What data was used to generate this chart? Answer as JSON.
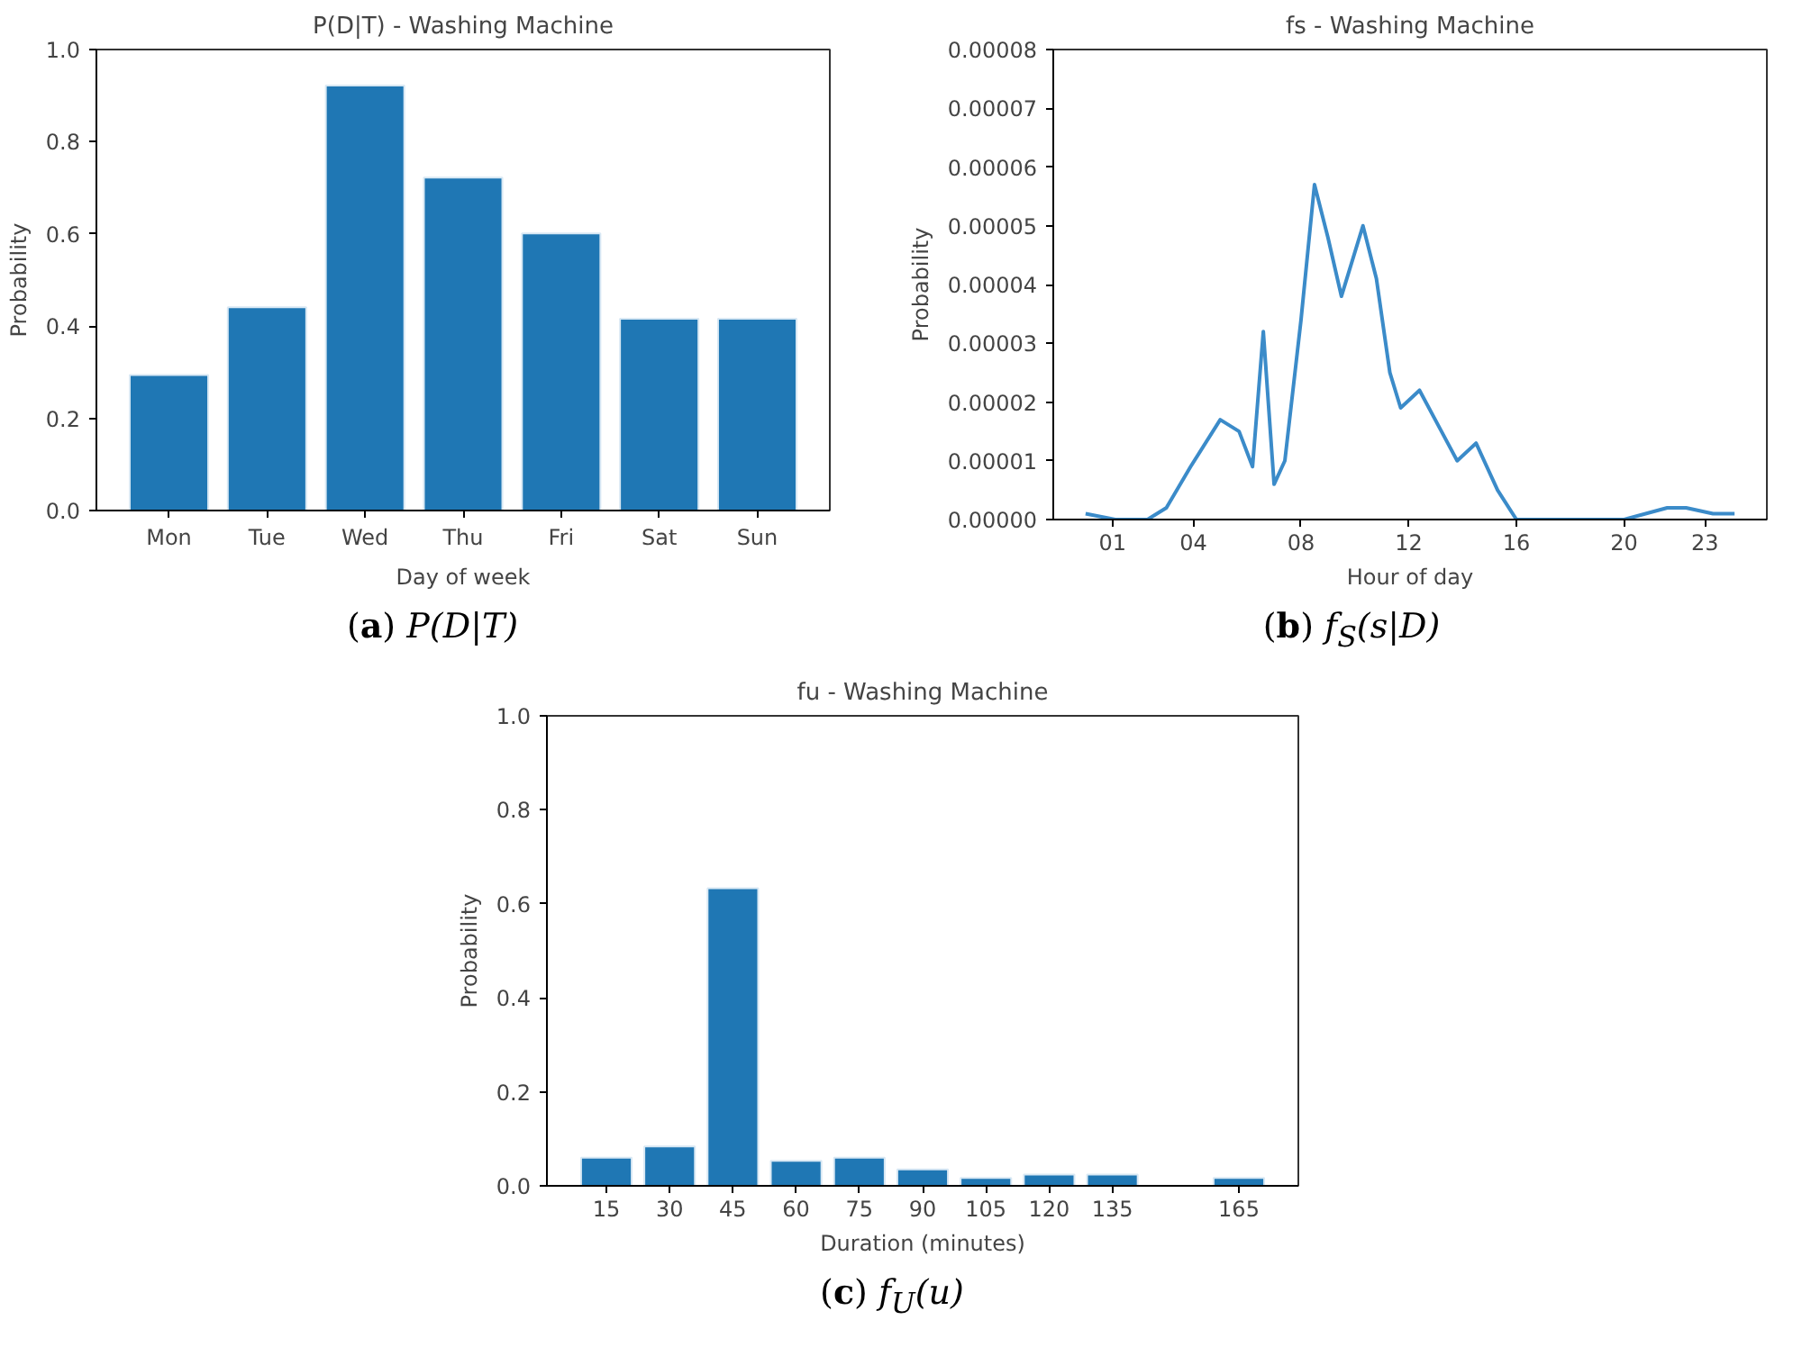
{
  "chart_data": [
    {
      "type": "bar",
      "title": "P(D|T) - Washing Machine",
      "xlabel": "Day of week",
      "ylabel": "Probability",
      "categories": [
        "Mon",
        "Tue",
        "Wed",
        "Thu",
        "Fri",
        "Sat",
        "Sun"
      ],
      "values": [
        0.294,
        0.441,
        0.922,
        0.722,
        0.601,
        0.416,
        0.416
      ],
      "color": "#1f77b4",
      "ylim": [
        0,
        1
      ],
      "yticks": [
        {
          "value": 0,
          "label": "0.0"
        },
        0.2,
        0.4,
        0.6,
        0.8,
        {
          "value": 1,
          "label": "1.0"
        }
      ],
      "grid": false,
      "annotations": [
        "(a) P(D|T)"
      ]
    },
    {
      "type": "line",
      "title": "fs - Washing Machine",
      "xlabel": "Hour of day",
      "ylabel": "Probability",
      "x": [
        0,
        1.1,
        2.3,
        3.0,
        3.9,
        5.0,
        5.7,
        6.2,
        6.6,
        7.0,
        7.4,
        8.0,
        8.5,
        9.0,
        9.5,
        10.3,
        10.8,
        11.3,
        11.7,
        12.4,
        13.1,
        13.8,
        14.5,
        15.3,
        16.0,
        17.4,
        20.0,
        21.6,
        22.3,
        23.3,
        24.1
      ],
      "values": [
        1e-06,
        0,
        0,
        2e-06,
        9e-06,
        1.7e-05,
        1.5e-05,
        9e-06,
        3.2e-05,
        6e-06,
        1e-05,
        3.4e-05,
        5.7e-05,
        4.8e-05,
        3.8e-05,
        5e-05,
        4.1e-05,
        2.5e-05,
        1.9e-05,
        2.2e-05,
        1.6e-05,
        1e-05,
        1.3e-05,
        5e-06,
        0,
        0,
        0,
        2e-06,
        2e-06,
        1e-06,
        1e-06
      ],
      "color": "#3b8bc9",
      "xlim": [
        -1.2,
        25.3
      ],
      "xticks": [
        {
          "value": 1,
          "label": "01"
        },
        {
          "value": 4,
          "label": "04"
        },
        {
          "value": 8,
          "label": "08"
        },
        {
          "value": 12,
          "label": "12"
        },
        {
          "value": 16,
          "label": "16"
        },
        {
          "value": 20,
          "label": "20"
        },
        {
          "value": 23,
          "label": "23"
        }
      ],
      "ylim": [
        0,
        8e-05
      ],
      "yticks": [
        {
          "value": 0,
          "label": "0.00000"
        },
        {
          "value": 1e-05,
          "label": "0.00001"
        },
        {
          "value": 2e-05,
          "label": "0.00002"
        },
        {
          "value": 3e-05,
          "label": "0.00003"
        },
        {
          "value": 4e-05,
          "label": "0.00004"
        },
        {
          "value": 5e-05,
          "label": "0.00005"
        },
        {
          "value": 6e-05,
          "label": "0.00006"
        },
        {
          "value": 7e-05,
          "label": "0.00007"
        },
        {
          "value": 8e-05,
          "label": "0.00008"
        }
      ],
      "grid": false,
      "marker": "none",
      "line_style": "solid",
      "annotations": [
        "(b) f$_{S}$(s|D)"
      ]
    },
    {
      "type": "bar",
      "title": "fu - Washing Machine",
      "xlabel": "Duration (minutes)",
      "ylabel": "Probability",
      "x": [
        15,
        30,
        45,
        60,
        75,
        90,
        105,
        120,
        135,
        165
      ],
      "values": [
        0.06,
        0.084,
        0.633,
        0.053,
        0.06,
        0.035,
        0.017,
        0.024,
        0.024,
        0.017
      ],
      "color": "#1f77b4",
      "xlim": [
        0.9,
        179.1
      ],
      "xticks": [
        15,
        30,
        45,
        60,
        75,
        90,
        105,
        120,
        135,
        165
      ],
      "ylim": [
        0,
        1
      ],
      "yticks": [
        {
          "value": 0,
          "label": "0.0"
        },
        0.2,
        0.4,
        0.6,
        0.8,
        {
          "value": 1,
          "label": "1.0"
        }
      ],
      "grid": false,
      "annotations": [
        "(c) f$_{U}$(u)"
      ]
    }
  ]
}
